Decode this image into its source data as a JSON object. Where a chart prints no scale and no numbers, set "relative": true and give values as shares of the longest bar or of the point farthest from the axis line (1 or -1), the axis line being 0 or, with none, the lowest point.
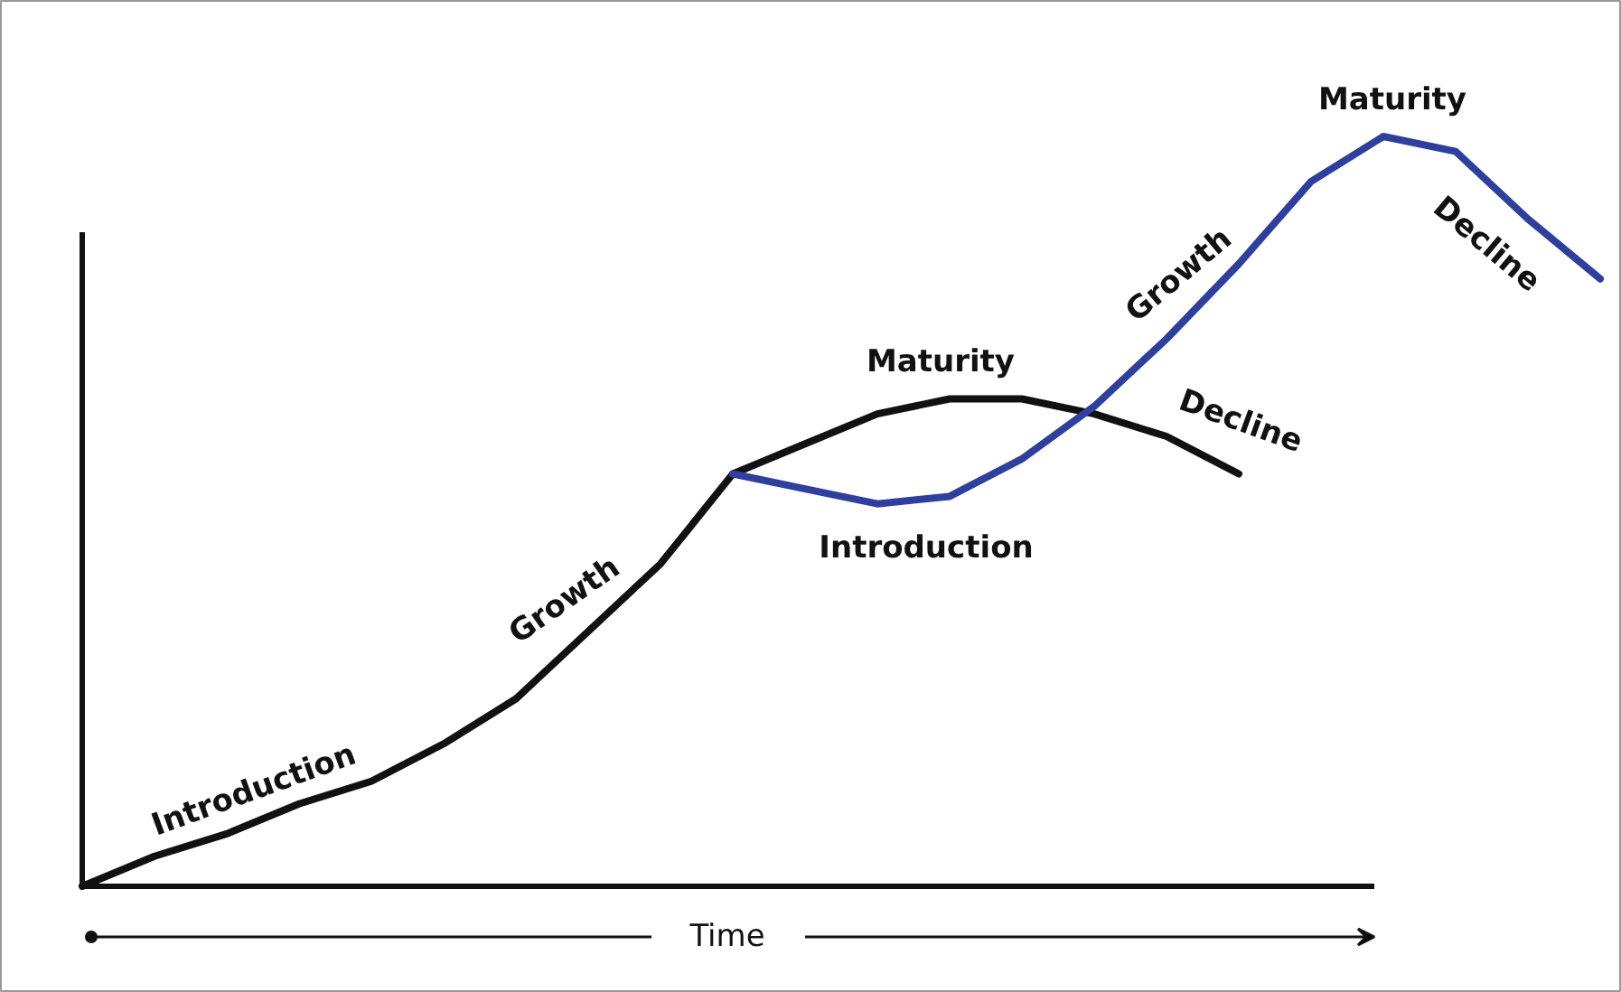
{
  "chart_data": {
    "type": "line",
    "relative": true,
    "categories": [
      null,
      null,
      null,
      null,
      null,
      null,
      null,
      null,
      null,
      null,
      null,
      null,
      null,
      null,
      null,
      null,
      null,
      null,
      null,
      null,
      null,
      null
    ],
    "series": [
      {
        "color": "#111111",
        "values": [
          0,
          0.04,
          0.07,
          0.11,
          0.14,
          0.19,
          0.25,
          0.34,
          0.43,
          0.55,
          0.59,
          0.63,
          0.65,
          0.65,
          0.63,
          0.6,
          0.55,
          null,
          null,
          null,
          null,
          null
        ]
      },
      {
        "color": "#2e3f9e",
        "values": [
          null,
          null,
          null,
          null,
          null,
          null,
          null,
          null,
          null,
          0.55,
          0.53,
          0.51,
          0.52,
          0.57,
          0.64,
          0.73,
          0.83,
          0.94,
          1.0,
          0.98,
          0.89,
          0.81
        ]
      }
    ],
    "xlabel": "Time",
    "annotations": [
      "Introduction",
      "Growth",
      "Maturity",
      "Decline",
      "Introduction",
      "Growth",
      "Maturity",
      "Decline"
    ]
  }
}
